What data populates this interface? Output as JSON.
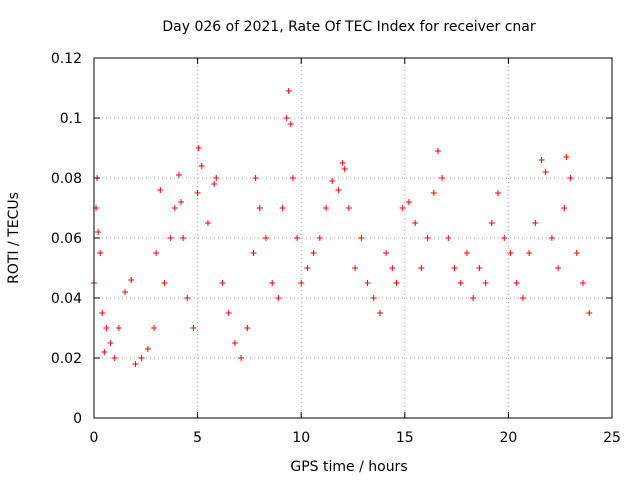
{
  "chart_data": {
    "type": "scatter",
    "title": "Day 026 of 2021, Rate Of TEC Index for receiver cnar",
    "xlabel": "GPS time / hours",
    "ylabel": "ROTI / TECUs",
    "xlim": [
      0,
      25
    ],
    "ylim": [
      0,
      0.12
    ],
    "xticks": [
      "0",
      "5",
      "10",
      "15",
      "20",
      "25"
    ],
    "yticks": [
      "0",
      "0.02",
      "0.04",
      "0.06",
      "0.08",
      "0.1",
      "0.12"
    ],
    "grid": true,
    "marker": "+",
    "color": "#ff0000",
    "series": [
      {
        "x": [
          0.0,
          0.1,
          0.15,
          0.2,
          0.3,
          0.4,
          0.5,
          0.6,
          0.8,
          1.0,
          1.2,
          1.5,
          1.8,
          2.0,
          2.3,
          2.6,
          2.9,
          3.0,
          3.2,
          3.4,
          3.7,
          3.9,
          4.1,
          4.2,
          4.3,
          4.5,
          4.8,
          5.0,
          5.05,
          5.2,
          5.5,
          5.8,
          5.9,
          6.2,
          6.5,
          6.8,
          7.1,
          7.4,
          7.7,
          7.8,
          8.0,
          8.3,
          8.6,
          8.9,
          9.1,
          9.3,
          9.4,
          9.5,
          9.6,
          9.8,
          10.0,
          10.3,
          10.6,
          10.9,
          11.2,
          11.5,
          11.8,
          12.0,
          12.1,
          12.3,
          12.6,
          12.9,
          13.2,
          13.5,
          13.8,
          14.1,
          14.4,
          14.6,
          14.9,
          15.2,
          15.5,
          15.8,
          16.1,
          16.4,
          16.6,
          16.8,
          17.1,
          17.4,
          17.7,
          18.0,
          18.3,
          18.6,
          18.9,
          19.2,
          19.5,
          19.8,
          20.1,
          20.4,
          20.7,
          21.0,
          21.3,
          21.6,
          21.8,
          22.1,
          22.4,
          22.7,
          22.8,
          23.0,
          23.3,
          23.6,
          23.9
        ],
        "y": [
          0.045,
          0.07,
          0.08,
          0.062,
          0.055,
          0.035,
          0.022,
          0.03,
          0.025,
          0.02,
          0.03,
          0.042,
          0.046,
          0.018,
          0.02,
          0.023,
          0.03,
          0.055,
          0.076,
          0.045,
          0.06,
          0.07,
          0.081,
          0.072,
          0.06,
          0.04,
          0.03,
          0.075,
          0.09,
          0.084,
          0.065,
          0.078,
          0.08,
          0.045,
          0.035,
          0.025,
          0.02,
          0.03,
          0.055,
          0.08,
          0.07,
          0.06,
          0.045,
          0.04,
          0.07,
          0.1,
          0.109,
          0.098,
          0.08,
          0.06,
          0.045,
          0.05,
          0.055,
          0.06,
          0.07,
          0.079,
          0.076,
          0.085,
          0.083,
          0.07,
          0.05,
          0.06,
          0.045,
          0.04,
          0.035,
          0.055,
          0.05,
          0.045,
          0.07,
          0.072,
          0.065,
          0.05,
          0.06,
          0.075,
          0.089,
          0.08,
          0.06,
          0.05,
          0.045,
          0.055,
          0.04,
          0.05,
          0.045,
          0.065,
          0.075,
          0.06,
          0.055,
          0.045,
          0.04,
          0.055,
          0.065,
          0.086,
          0.082,
          0.06,
          0.05,
          0.07,
          0.087,
          0.08,
          0.055,
          0.045,
          0.035
        ]
      }
    ]
  }
}
